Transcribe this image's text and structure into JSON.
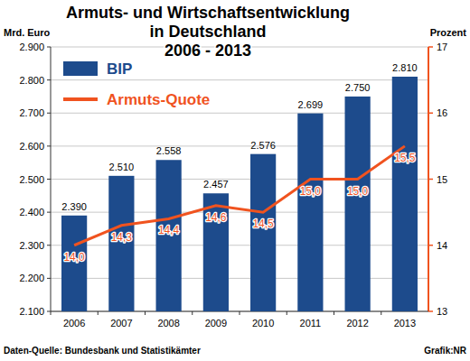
{
  "chart_data": {
    "type": "bar",
    "title": "Armuts- und Wirtschaftsentwicklung\nin Deutschland\n2006 - 2013",
    "y_label": "Mrd. Euro",
    "y2_label": "Prozent",
    "annotations": [
      "Daten-Quelle: Bundesbank und Statistikämter",
      "Grafik:NR"
    ],
    "categories": [
      "2006",
      "2007",
      "2008",
      "2009",
      "2010",
      "2011",
      "2012",
      "2013"
    ],
    "series": [
      {
        "name": "BIP",
        "type": "bar",
        "color": "#1d4b8c",
        "values": [
          2390,
          2510,
          2558,
          2457,
          2576,
          2699,
          2750,
          2810
        ],
        "value_labels": [
          "2.390",
          "2.510",
          "2.558",
          "2.457",
          "2.576",
          "2.699",
          "2.750",
          "2.810"
        ]
      },
      {
        "name": "Armuts-Quote",
        "type": "line",
        "axis": "y2",
        "color": "#f0531f",
        "line_style": "solid",
        "values": [
          14.0,
          14.3,
          14.4,
          14.6,
          14.5,
          15.0,
          15.0,
          15.5
        ],
        "value_labels": [
          "14,0",
          "14,3",
          "14,4",
          "14,6",
          "14,5",
          "15,0",
          "15,0",
          "15,5"
        ]
      }
    ],
    "ylim": [
      2100,
      2900
    ],
    "yticks": [
      {
        "value": 2100,
        "label": "2.100"
      },
      {
        "value": 2200,
        "label": "2.200"
      },
      {
        "value": 2300,
        "label": "2.300"
      },
      {
        "value": 2400,
        "label": "2.400"
      },
      {
        "value": 2500,
        "label": "2.500"
      },
      {
        "value": 2600,
        "label": "2.600"
      },
      {
        "value": 2700,
        "label": "2.700"
      },
      {
        "value": 2800,
        "label": "2.800"
      },
      {
        "value": 2900,
        "label": "2.900"
      }
    ],
    "y2lim": [
      13,
      17
    ],
    "y2ticks": [
      13,
      14,
      15,
      16,
      17
    ],
    "grid": true,
    "legend": "top-left",
    "data_labels": true
  }
}
